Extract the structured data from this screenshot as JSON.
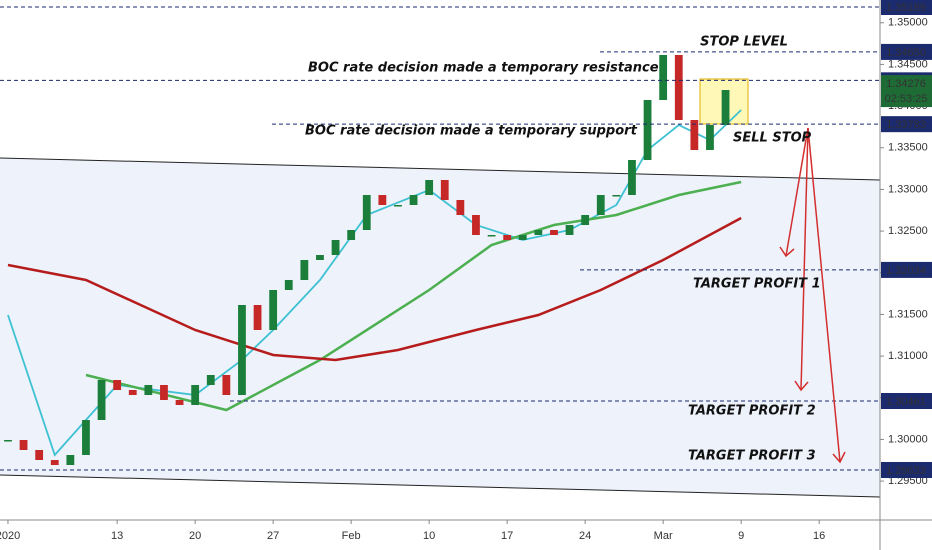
{
  "chart_data": {
    "type": "candlestick",
    "x": [
      0,
      1,
      2,
      3,
      4,
      5,
      6,
      7,
      8,
      9,
      10,
      11,
      12,
      13,
      14,
      15,
      16,
      17,
      18,
      19,
      20,
      21,
      22,
      23,
      24,
      25,
      26,
      27,
      28,
      29,
      30,
      31,
      32,
      33,
      34,
      35,
      36,
      37,
      38,
      39,
      40,
      41,
      42,
      43,
      44,
      45,
      46
    ],
    "values": [
      1.29993,
      1.29873,
      1.29753,
      1.29693,
      1.29813,
      1.30233,
      1.30713,
      1.30593,
      1.30533,
      1.30653,
      1.30473,
      1.30413,
      1.30653,
      1.30773,
      1.30533,
      1.31613,
      1.31313,
      1.31793,
      1.31913,
      1.32153,
      1.32213,
      1.32393,
      1.32513,
      1.32933,
      1.32813,
      1.32813,
      1.32933,
      1.33113,
      1.32873,
      1.32693,
      1.32453,
      1.32453,
      1.32393,
      1.32453,
      1.32513,
      1.32453,
      1.32573,
      1.32693,
      1.32933,
      1.32933,
      1.33353,
      1.34073,
      1.34613,
      1.33833,
      1.33473,
      1.33773,
      1.34193
    ],
    "up_color": "#1b7f3b",
    "down_color": "#c62828",
    "moving_averages": [
      {
        "color": "#3ec1d3",
        "x": [
          0,
          3,
          7,
          12,
          15,
          17,
          20,
          23,
          27,
          30,
          33,
          36,
          39,
          41,
          43,
          45,
          47
        ],
        "values": [
          1.31493,
          1.29813,
          1.30653,
          1.30533,
          1.30953,
          1.31313,
          1.31913,
          1.32693,
          1.32993,
          1.32573,
          1.32393,
          1.32513,
          1.32813,
          1.33473,
          1.33773,
          1.33593,
          1.33953
        ]
      },
      {
        "color": "#4caf50",
        "x": [
          5,
          14,
          20,
          27,
          31,
          35,
          39,
          43,
          47
        ],
        "values": [
          1.30773,
          1.30353,
          1.30953,
          1.31793,
          1.32333,
          1.32573,
          1.32693,
          1.32933,
          1.33089
        ]
      },
      {
        "color": "#b71c1c",
        "x": [
          0,
          5,
          12,
          17,
          21,
          25,
          30,
          34,
          38,
          42,
          47
        ],
        "values": [
          1.32093,
          1.31913,
          1.31313,
          1.31013,
          1.30953,
          1.31073,
          1.31313,
          1.31493,
          1.31793,
          1.32153,
          1.32657
        ]
      }
    ],
    "xlim": [
      -0.51,
      55.9
    ],
    "xticks": [
      {
        "value": 0,
        "label": "2020"
      },
      {
        "value": 7,
        "label": "13"
      },
      {
        "value": 12,
        "label": "20"
      },
      {
        "value": 17,
        "label": "27"
      },
      {
        "value": 22,
        "label": "Feb"
      },
      {
        "value": 27,
        "label": "10"
      },
      {
        "value": 32,
        "label": "17"
      },
      {
        "value": 37,
        "label": "24"
      },
      {
        "value": 42,
        "label": "Mar"
      },
      {
        "value": 47,
        "label": "9"
      },
      {
        "value": 52,
        "label": "16"
      }
    ],
    "ylim": [
      1.29033,
      1.35273
    ],
    "yticks": [
      {
        "value": 1.295,
        "label": "1.29500"
      },
      {
        "value": 1.3,
        "label": "1.30000"
      },
      {
        "value": 1.305,
        "label": "1.30500"
      },
      {
        "value": 1.31,
        "label": "1.31000"
      },
      {
        "value": 1.315,
        "label": "1.31500"
      },
      {
        "value": 1.32,
        "label": "1.32000"
      },
      {
        "value": 1.325,
        "label": "1.32500"
      },
      {
        "value": 1.33,
        "label": "1.33000"
      },
      {
        "value": 1.335,
        "label": "1.33500"
      },
      {
        "value": 1.34,
        "label": "1.34000"
      },
      {
        "value": 1.345,
        "label": "1.34500"
      },
      {
        "value": 1.35,
        "label": "1.35000"
      }
    ],
    "levels": [
      1.35189,
      {
        "value": 1.3465,
        "label": "1.34650"
      },
      1.34309,
      1.33783,
      1.32034,
      1.30461,
      1.29633
    ],
    "level_color": "#1c2a6e",
    "current_price": 1.34276,
    "countdown": "02:53:25",
    "current_color": "#1e6b35",
    "annotations": {
      "stop_level": "STOP LEVEL",
      "resistance": "BOC rate decision made a temporary resistance",
      "support": "BOC rate decision made a temporary support",
      "sell_stop": "SELL STOP",
      "target_1": "TARGET PROFIT 1",
      "target_2": "TARGET PROFIT 2",
      "target_3": "TARGET PROFIT 3"
    }
  }
}
